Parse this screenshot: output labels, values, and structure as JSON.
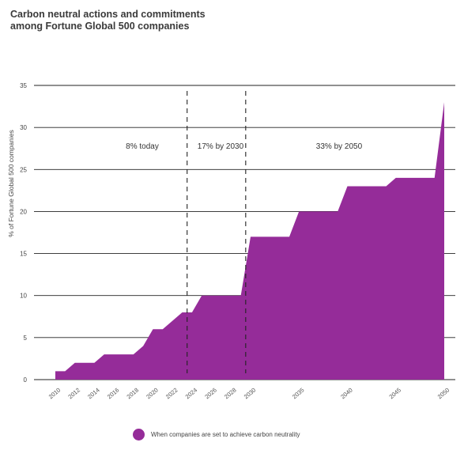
{
  "chart_data": {
    "type": "area",
    "title_lines": [
      "Carbon neutral actions and commitments",
      "among Fortune Global 500 companies"
    ],
    "ylabel": "% of Fortune Global 500 companies",
    "xlabel": "",
    "ylim": [
      0,
      35
    ],
    "yticks": [
      0,
      5,
      10,
      15,
      20,
      25,
      30,
      35
    ],
    "xlim": [
      2010,
      2050
    ],
    "xticks": [
      "2010",
      "2012",
      "2014",
      "2016",
      "2018",
      "2020",
      "2022",
      "2024",
      "2026",
      "2028",
      "2030",
      "2035",
      "2040",
      "2045",
      "2050"
    ],
    "grid": true,
    "series": [
      {
        "name": "When companies are set to achieve carbon neutrality",
        "color": "#952c99",
        "x": [
          2010,
          2011,
          2012,
          2013,
          2014,
          2015,
          2016,
          2017,
          2018,
          2019,
          2020,
          2021,
          2022,
          2023,
          2024,
          2025,
          2026,
          2027,
          2028,
          2029,
          2030,
          2031,
          2032,
          2033,
          2034,
          2035,
          2036,
          2037,
          2038,
          2039,
          2040,
          2041,
          2042,
          2043,
          2044,
          2045,
          2046,
          2047,
          2048,
          2049,
          2050
        ],
        "values": [
          1,
          1,
          2,
          2,
          2,
          3,
          3,
          3,
          3,
          4,
          6,
          6,
          7,
          8,
          8,
          10,
          10,
          10,
          10,
          10,
          17,
          17,
          17,
          17,
          17,
          20,
          20,
          20,
          20,
          20,
          23,
          23,
          23,
          23,
          23,
          24,
          24,
          24,
          24,
          24,
          33
        ]
      }
    ],
    "markers": [
      {
        "x": 2023.5,
        "label": ""
      },
      {
        "x": 2029.5,
        "label": ""
      }
    ],
    "annotations": [
      "8% today",
      "17% by 2030",
      "33% by 2050"
    ],
    "legend_position": "bottom"
  }
}
